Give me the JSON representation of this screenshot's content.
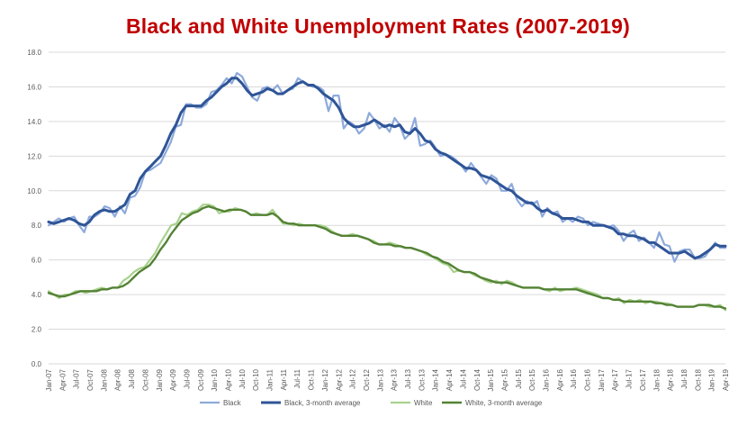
{
  "chart_data": {
    "type": "line",
    "title": "Black and White Unemployment Rates (2007-2019)",
    "xlabel": "",
    "ylabel": "",
    "ylim": [
      0,
      18
    ],
    "yticks": [
      "0.0",
      "2.0",
      "4.0",
      "6.0",
      "8.0",
      "10.0",
      "12.0",
      "14.0",
      "16.0",
      "18.0"
    ],
    "grid": "horizontal",
    "legend_position": "bottom",
    "x_tick_labels": [
      "Jan-07",
      "Apr-07",
      "Jul-07",
      "Oct-07",
      "Jan-08",
      "Apr-08",
      "Jul-08",
      "Oct-08",
      "Jan-09",
      "Apr-09",
      "Jul-09",
      "Oct-09",
      "Jan-10",
      "Apr-10",
      "Jul-10",
      "Oct-10",
      "Jan-11",
      "Apr-11",
      "Jul-11",
      "Oct-11",
      "Jan-12",
      "Apr-12",
      "Jul-12",
      "Oct-12",
      "Jan-13",
      "Apr-13",
      "Jul-13",
      "Oct-13",
      "Jan-14",
      "Apr-14",
      "Jul-14",
      "Oct-14",
      "Jan-15",
      "Apr-15",
      "Jul-15",
      "Oct-15",
      "Jan-16",
      "Apr-16",
      "Jul-16",
      "Oct-16",
      "Jan-17",
      "Apr-17",
      "Jul-17",
      "Oct-17",
      "Jan-18",
      "Apr-18",
      "Jul-18",
      "Oct-18",
      "Jan-19",
      "Apr-19"
    ],
    "series": [
      {
        "name": "Black",
        "color": "#8eaadb",
        "width": 2.2,
        "values": [
          8.0,
          8.2,
          8.4,
          8.2,
          8.4,
          8.5,
          8.0,
          7.6,
          8.5,
          8.5,
          8.7,
          9.1,
          9.0,
          8.5,
          9.1,
          8.7,
          9.6,
          9.7,
          10.2,
          11.1,
          11.2,
          11.4,
          11.6,
          12.2,
          12.8,
          13.7,
          13.8,
          15.0,
          15.0,
          14.8,
          14.8,
          15.0,
          15.7,
          15.8,
          16.1,
          16.5,
          16.2,
          16.8,
          16.6,
          16.0,
          15.4,
          15.2,
          15.9,
          16.0,
          15.8,
          16.1,
          15.6,
          15.8,
          15.9,
          16.5,
          16.3,
          16.1,
          16.0,
          16.0,
          15.8,
          14.6,
          15.5,
          15.5,
          13.6,
          14.0,
          13.8,
          13.3,
          13.6,
          14.5,
          14.1,
          13.6,
          13.8,
          13.4,
          14.2,
          13.8,
          13.0,
          13.3,
          14.2,
          12.6,
          12.7,
          12.9,
          12.5,
          12.0,
          12.1,
          12.0,
          11.8,
          11.5,
          11.1,
          11.6,
          11.2,
          10.8,
          10.4,
          10.9,
          10.7,
          10.0,
          10.0,
          10.4,
          9.5,
          9.1,
          9.4,
          9.2,
          9.4,
          8.5,
          9.0,
          8.7,
          8.8,
          8.2,
          8.4,
          8.2,
          8.5,
          8.4,
          8.0,
          8.2,
          8.1,
          8.0,
          7.9,
          8.0,
          7.7,
          7.1,
          7.5,
          7.7,
          7.1,
          7.3,
          7.0,
          6.7,
          7.6,
          6.9,
          6.8,
          5.9,
          6.5,
          6.6,
          6.6,
          6.1,
          6.1,
          6.2,
          6.6,
          7.0,
          6.7,
          6.7
        ],
        "dash": ""
      },
      {
        "name": "Black, 3-month average",
        "color": "#2f5597",
        "width": 3,
        "values": [
          8.2,
          8.1,
          8.2,
          8.3,
          8.4,
          8.3,
          8.1,
          8.0,
          8.2,
          8.6,
          8.8,
          8.9,
          8.8,
          8.8,
          9.0,
          9.2,
          9.8,
          10.0,
          10.7,
          11.1,
          11.4,
          11.7,
          12.0,
          12.6,
          13.3,
          13.8,
          14.5,
          14.9,
          14.9,
          14.9,
          14.9,
          15.2,
          15.4,
          15.7,
          16.0,
          16.2,
          16.5,
          16.5,
          16.2,
          15.8,
          15.5,
          15.6,
          15.7,
          15.9,
          15.8,
          15.6,
          15.6,
          15.8,
          16.0,
          16.2,
          16.3,
          16.1,
          16.1,
          15.9,
          15.6,
          15.4,
          15.2,
          14.8,
          14.2,
          13.9,
          13.7,
          13.7,
          13.8,
          13.9,
          14.1,
          13.9,
          13.7,
          13.8,
          13.7,
          13.8,
          13.4,
          13.3,
          13.6,
          13.3,
          12.9,
          12.8,
          12.4,
          12.2,
          12.1,
          11.9,
          11.7,
          11.5,
          11.3,
          11.3,
          11.2,
          10.9,
          10.8,
          10.7,
          10.5,
          10.3,
          10.1,
          10.0,
          9.7,
          9.5,
          9.3,
          9.3,
          9.0,
          8.8,
          8.9,
          8.7,
          8.6,
          8.4,
          8.4,
          8.4,
          8.3,
          8.2,
          8.2,
          8.0,
          8.0,
          8.0,
          7.9,
          7.8,
          7.5,
          7.5,
          7.4,
          7.4,
          7.3,
          7.2,
          7.0,
          7.0,
          6.8,
          6.6,
          6.4,
          6.4,
          6.4,
          6.5,
          6.3,
          6.1,
          6.2,
          6.4,
          6.6,
          6.9,
          6.8,
          6.8
        ],
        "dash": ""
      },
      {
        "name": "White",
        "color": "#a9d18e",
        "width": 2.2,
        "values": [
          4.2,
          4.0,
          3.8,
          4.0,
          4.0,
          4.2,
          4.2,
          4.1,
          4.2,
          4.3,
          4.4,
          4.3,
          4.4,
          4.4,
          4.8,
          5.0,
          5.3,
          5.5,
          5.6,
          6.0,
          6.4,
          7.0,
          7.5,
          8.0,
          8.1,
          8.7,
          8.6,
          8.8,
          8.9,
          9.2,
          9.2,
          9.1,
          8.7,
          8.8,
          8.8,
          9.0,
          8.9,
          8.8,
          8.6,
          8.7,
          8.6,
          8.6,
          8.9,
          8.5,
          8.1,
          8.1,
          8.0,
          8.1,
          8.0,
          8.0,
          8.0,
          8.0,
          7.9,
          7.7,
          7.5,
          7.4,
          7.4,
          7.5,
          7.4,
          7.3,
          7.2,
          7.1,
          6.9,
          6.9,
          7.0,
          6.9,
          6.8,
          6.7,
          6.7,
          6.6,
          6.5,
          6.3,
          6.2,
          6.0,
          5.8,
          5.7,
          5.3,
          5.4,
          5.3,
          5.3,
          5.1,
          5.0,
          4.8,
          4.7,
          4.8,
          4.6,
          4.8,
          4.7,
          4.5,
          4.4,
          4.4,
          4.4,
          4.4,
          4.3,
          4.2,
          4.4,
          4.2,
          4.3,
          4.3,
          4.4,
          4.3,
          4.2,
          4.1,
          4.0,
          3.8,
          3.8,
          3.7,
          3.8,
          3.5,
          3.7,
          3.6,
          3.7,
          3.5,
          3.6,
          3.6,
          3.5,
          3.5,
          3.4,
          3.3,
          3.3,
          3.3,
          3.3,
          3.4,
          3.4,
          3.3,
          3.3,
          3.4,
          3.1
        ],
        "dash": ""
      },
      {
        "name": "White, 3-month average",
        "color": "#548235",
        "width": 2.4,
        "values": [
          4.1,
          4.0,
          3.9,
          3.9,
          4.0,
          4.1,
          4.2,
          4.2,
          4.2,
          4.2,
          4.3,
          4.3,
          4.4,
          4.4,
          4.5,
          4.7,
          5.0,
          5.3,
          5.5,
          5.7,
          6.1,
          6.6,
          7.0,
          7.5,
          7.9,
          8.3,
          8.5,
          8.7,
          8.8,
          9.0,
          9.1,
          9.0,
          8.9,
          8.8,
          8.9,
          8.9,
          8.9,
          8.8,
          8.6,
          8.6,
          8.6,
          8.6,
          8.7,
          8.5,
          8.2,
          8.1,
          8.1,
          8.0,
          8.0,
          8.0,
          8.0,
          7.9,
          7.8,
          7.6,
          7.5,
          7.4,
          7.4,
          7.4,
          7.4,
          7.3,
          7.2,
          7.0,
          6.9,
          6.9,
          6.9,
          6.8,
          6.8,
          6.7,
          6.7,
          6.6,
          6.5,
          6.4,
          6.2,
          6.1,
          5.9,
          5.8,
          5.6,
          5.4,
          5.3,
          5.3,
          5.2,
          5.0,
          4.9,
          4.8,
          4.7,
          4.7,
          4.7,
          4.6,
          4.5,
          4.4,
          4.4,
          4.4,
          4.4,
          4.3,
          4.3,
          4.3,
          4.3,
          4.3,
          4.3,
          4.3,
          4.2,
          4.1,
          4.0,
          3.9,
          3.8,
          3.8,
          3.7,
          3.7,
          3.6,
          3.6,
          3.6,
          3.6,
          3.6,
          3.6,
          3.5,
          3.5,
          3.4,
          3.4,
          3.3,
          3.3,
          3.3,
          3.3,
          3.4,
          3.4,
          3.4,
          3.3,
          3.3,
          3.2
        ],
        "dash": ""
      }
    ]
  }
}
